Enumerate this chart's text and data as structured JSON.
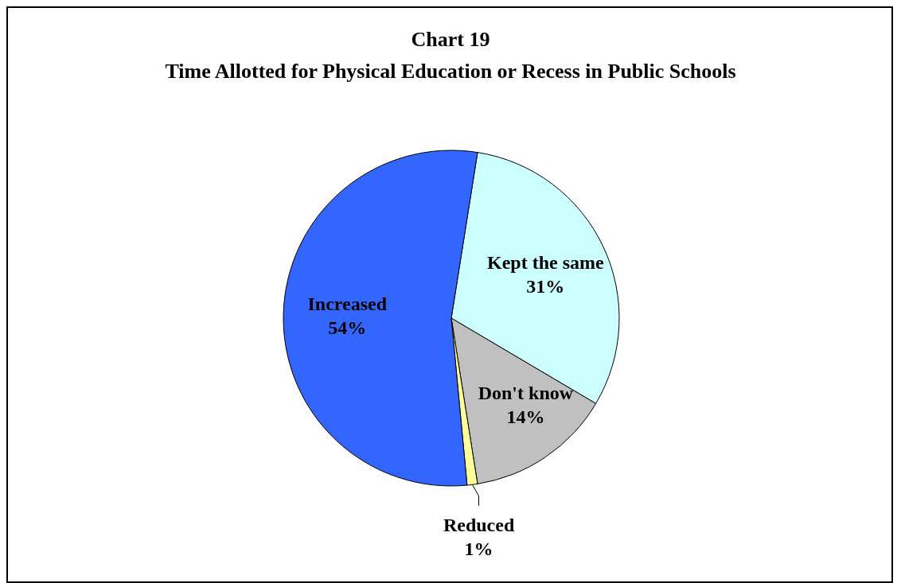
{
  "chart_data": {
    "type": "pie",
    "title": "Chart 19",
    "subtitle": "Time Allotted for Physical Education or Recess in Public Schools",
    "categories": [
      "Kept the same",
      "Don't know",
      "Reduced",
      "Increased"
    ],
    "values": [
      31,
      14,
      1,
      54
    ],
    "colors": [
      "#ccffff",
      "#c0c0c0",
      "#ffff99",
      "#3366ff"
    ],
    "value_labels": [
      "31%",
      "14%",
      "1%",
      "54%"
    ]
  }
}
